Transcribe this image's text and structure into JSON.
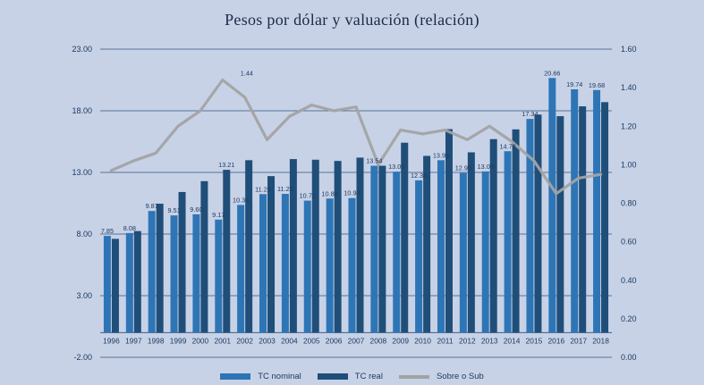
{
  "title": "Pesos por dólar y valuación (relación)",
  "colors": {
    "background": "#c7d2e7",
    "text": "#1f3a60",
    "title_text": "#1b2a44",
    "grid": "#33517c",
    "bar_nominal": "#2e75b6",
    "bar_real": "#1f4e79",
    "line": "#a3a3a3"
  },
  "legend": {
    "items": [
      {
        "label": "TC nominal",
        "type": "bar",
        "color": "#2e75b6"
      },
      {
        "label": "TC real",
        "type": "bar",
        "color": "#1f4e79"
      },
      {
        "label": "Sobre o Sub",
        "type": "line",
        "color": "#a3a3a3"
      }
    ]
  },
  "chart_data": {
    "type": "bar",
    "subtype": "combo-bar-line",
    "title": "Pesos por dólar y valuación (relación)",
    "legend_position": "bottom",
    "grid": "horizontal",
    "categories": [
      "1996",
      "1997",
      "1998",
      "1999",
      "2000",
      "2001",
      "2002",
      "2003",
      "2004",
      "2005",
      "2006",
      "2007",
      "2008",
      "2009",
      "2010",
      "2011",
      "2012",
      "2013",
      "2014",
      "2015",
      "2016",
      "2017",
      "2018"
    ],
    "series": [
      {
        "name": "TC nominal",
        "type": "bar",
        "axis": "left",
        "color": "#2e75b6",
        "values": [
          7.85,
          8.08,
          9.87,
          9.51,
          9.6,
          9.17,
          10.36,
          11.24,
          11.26,
          10.71,
          10.88,
          10.92,
          13.54,
          13.06,
          12.36,
          13.99,
          12.95,
          13.08,
          14.72,
          17.34,
          20.66,
          19.74,
          19.68
        ],
        "labels": [
          "7.85",
          "8.08",
          "9.87",
          "9.51",
          "9.60",
          "9.17",
          "10.36",
          "11.24",
          "11.26",
          "10.71",
          "10.88",
          "10.92",
          "13.54",
          "13.06",
          "12.36",
          "13.99",
          "12.95",
          "13.08",
          "14.72",
          "17.34",
          "20.66",
          "19.74",
          "19.68"
        ]
      },
      {
        "name": "TC real",
        "type": "bar",
        "axis": "left",
        "color": "#1f4e79",
        "values": [
          7.61,
          8.24,
          10.46,
          11.41,
          12.29,
          13.21,
          13.99,
          12.7,
          14.08,
          14.03,
          13.93,
          14.2,
          13.54,
          15.41,
          14.34,
          16.51,
          14.63,
          15.7,
          16.49,
          17.69,
          17.56,
          18.36,
          18.7
        ],
        "labels": [
          null,
          null,
          null,
          null,
          null,
          "13.21",
          null,
          null,
          null,
          null,
          null,
          null,
          null,
          null,
          null,
          null,
          null,
          null,
          null,
          null,
          null,
          null,
          null
        ]
      },
      {
        "name": "Sobre o Sub",
        "type": "line",
        "axis": "right",
        "color": "#a3a3a3",
        "values": [
          0.97,
          1.02,
          1.06,
          1.2,
          1.28,
          1.44,
          1.35,
          1.13,
          1.25,
          1.31,
          1.28,
          1.3,
          1.0,
          1.18,
          1.16,
          1.18,
          1.13,
          1.2,
          1.12,
          1.02,
          0.85,
          0.93,
          0.95
        ],
        "labels": [
          null,
          null,
          null,
          null,
          null,
          "1.44",
          null,
          null,
          null,
          null,
          null,
          null,
          null,
          null,
          null,
          null,
          null,
          null,
          null,
          null,
          null,
          null,
          null
        ]
      }
    ],
    "left_axis": {
      "min": -2,
      "max": 23,
      "tick_values": [
        23,
        18,
        13,
        8,
        3,
        -2
      ],
      "tick_labels": [
        "23.00",
        "18.00",
        "13.00",
        "8.00",
        "3.00",
        "-2.00"
      ]
    },
    "right_axis": {
      "min": 0,
      "max": 1.6,
      "tick_values": [
        1.6,
        1.4,
        1.2,
        1.0,
        0.8,
        0.6,
        0.4,
        0.2,
        0.0
      ],
      "tick_labels": [
        "1.60",
        "1.40",
        "1.20",
        "1.00",
        "0.80",
        "0.60",
        "0.40",
        "0.20",
        "0.00"
      ]
    }
  }
}
